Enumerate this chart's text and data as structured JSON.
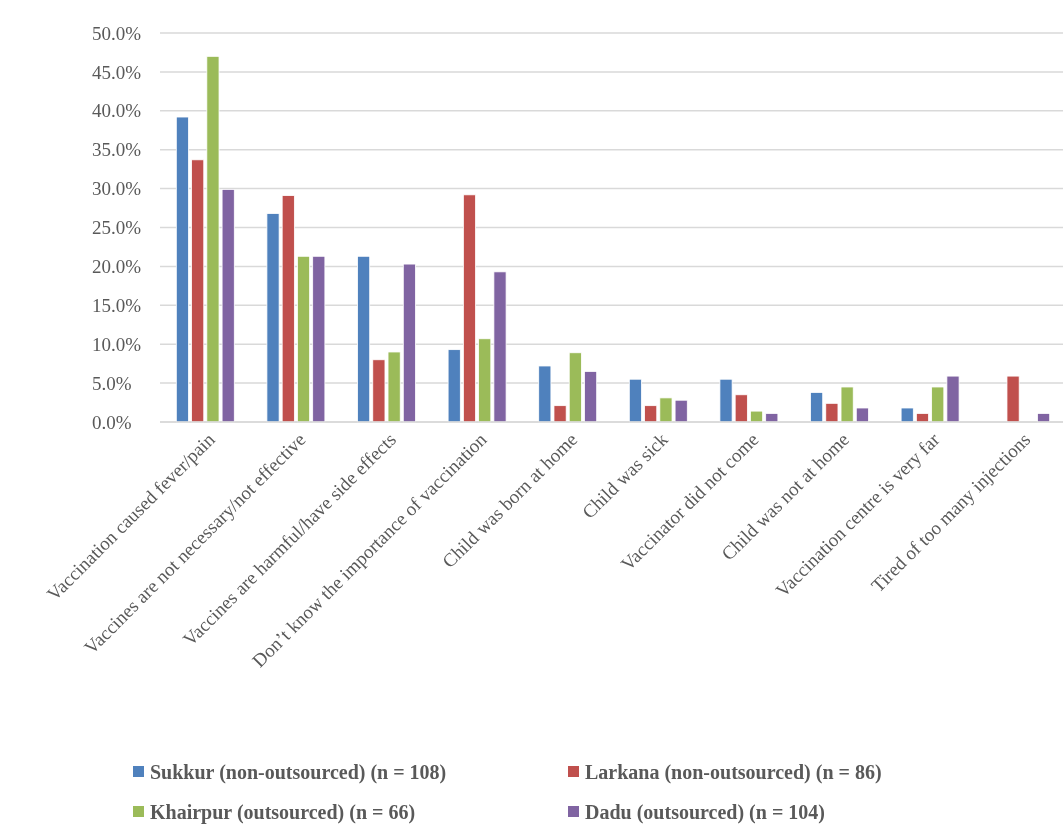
{
  "chart_data": {
    "type": "bar",
    "categories": [
      "Vaccination caused fever/pain",
      "Vaccines are not necessary/not effective",
      "Vaccines are harmful/have side effects",
      "Don’t know the importance of vaccination",
      "Child was born at home",
      "Child was sick",
      "Vaccinator did not come",
      "Child was not at home",
      "Vaccination centre is very far",
      "Tired of too many injections"
    ],
    "series": [
      {
        "name": "Sukkur (non-outsourced) (n = 108)",
        "color": "#4f81bd",
        "values": [
          39.2,
          26.8,
          21.3,
          9.3,
          7.2,
          5.5,
          5.5,
          3.8,
          1.8,
          0
        ]
      },
      {
        "name": "Larkana (non-outsourced) (n = 86)",
        "color": "#c0504d",
        "values": [
          33.7,
          29.1,
          8.0,
          29.2,
          2.1,
          2.1,
          3.5,
          2.4,
          1.1,
          5.9
        ]
      },
      {
        "name": "Khairpur (outsourced) (n = 66)",
        "color": "#9bbb59",
        "values": [
          47.0,
          21.3,
          9.0,
          10.7,
          8.9,
          3.1,
          1.4,
          4.5,
          4.5,
          0
        ]
      },
      {
        "name": "Dadu (outsourced) (n = 104)",
        "color": "#8064a2",
        "values": [
          29.9,
          21.3,
          20.3,
          19.3,
          6.5,
          2.8,
          1.1,
          1.8,
          5.9,
          1.1
        ]
      }
    ],
    "ylim": [
      0,
      50
    ],
    "yticks": [
      {
        "value": 0,
        "label": "0.0%"
      },
      {
        "value": 5,
        "label": "5.0%"
      },
      {
        "value": 10,
        "label": "10.0%"
      },
      {
        "value": 15,
        "label": "15.0%"
      },
      {
        "value": 20,
        "label": "20.0%"
      },
      {
        "value": 25,
        "label": "25.0%"
      },
      {
        "value": 30,
        "label": "30.0%"
      },
      {
        "value": 35,
        "label": "35.0%"
      },
      {
        "value": 40,
        "label": "40.0%"
      },
      {
        "value": 45,
        "label": "45.0%"
      },
      {
        "value": 50,
        "label": "50.0%"
      }
    ],
    "grid": "y",
    "legend": "bottom"
  }
}
